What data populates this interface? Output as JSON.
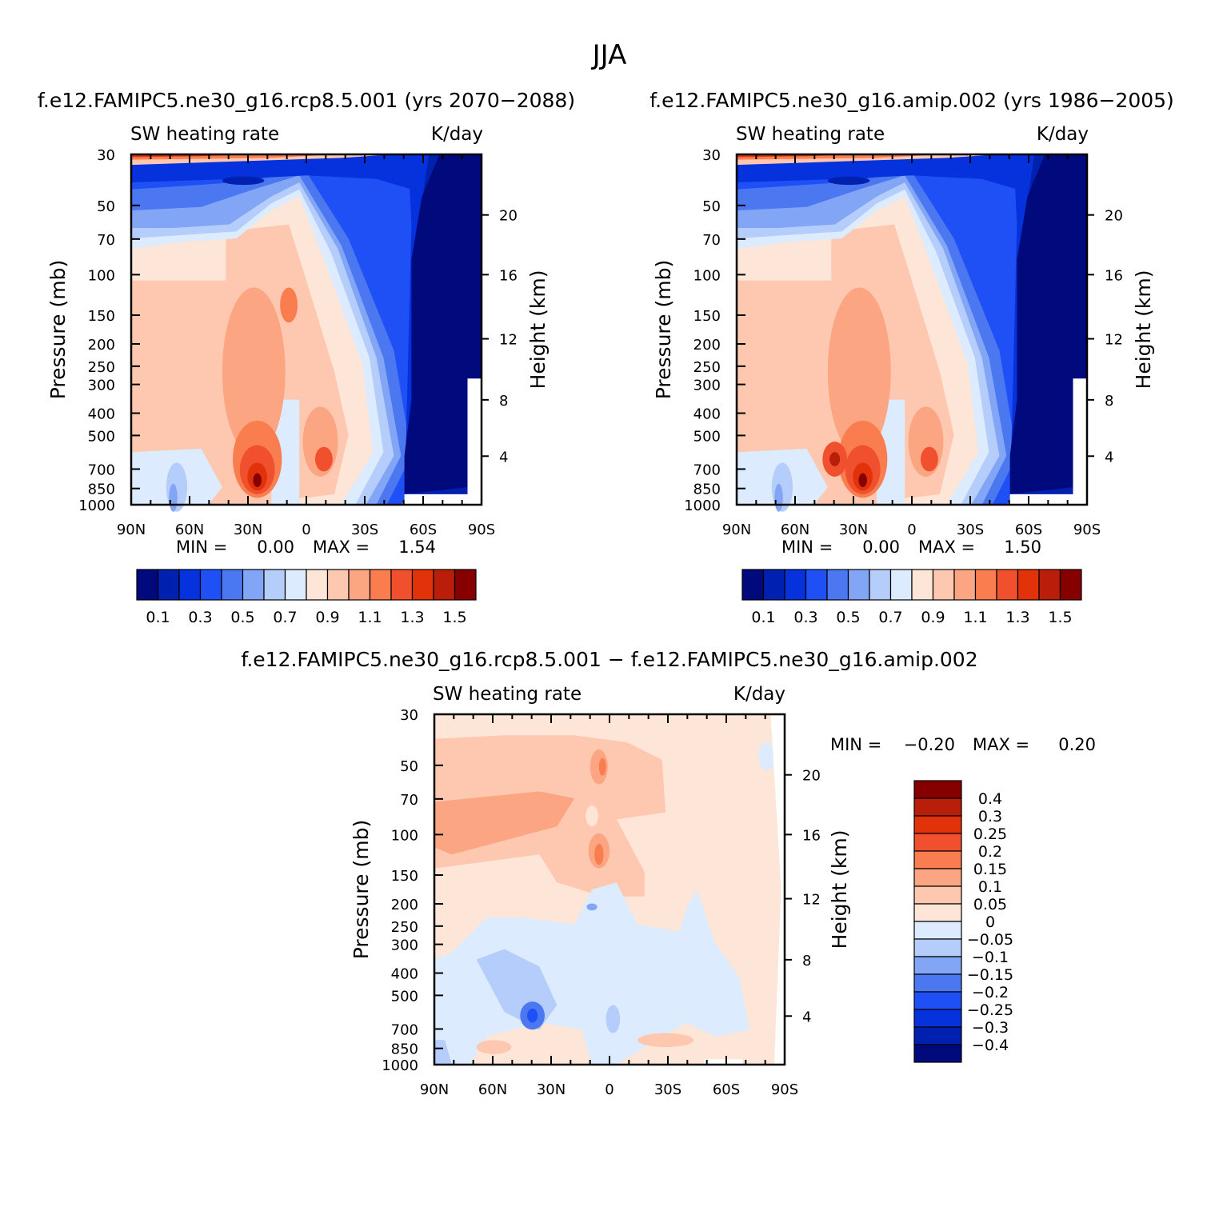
{
  "chart_data": {
    "type": "contour",
    "title": "JJA",
    "panels": [
      {
        "id": "rcp",
        "title": "f.e12.FAMIPC5.ne30_g16.rcp8.5.001 (yrs 2070-2088)",
        "variable": "SW heating rate",
        "units": "K/day",
        "ylabel": "Pressure (mb)",
        "y2label": "Height (km)",
        "x_ticks": [
          "90N",
          "60N",
          "30N",
          "0",
          "30S",
          "60S",
          "90S"
        ],
        "y_ticks": [
          "30",
          "50",
          "70",
          "100",
          "150",
          "200",
          "250",
          "300",
          "400",
          "500",
          "700",
          "850",
          "1000"
        ],
        "height_ticks": [
          "20",
          "16",
          "12",
          "8",
          "4"
        ],
        "min_label": "MIN =",
        "min_value": "0.00",
        "max_label": "MAX =",
        "max_value": "1.54",
        "colorbar_labels": [
          "0.1",
          "0.3",
          "0.5",
          "0.7",
          "0.9",
          "1.1",
          "1.3",
          "1.5"
        ],
        "colorbar_levels": [
          0.1,
          0.2,
          0.3,
          0.4,
          0.5,
          0.6,
          0.7,
          0.8,
          0.9,
          1.0,
          1.1,
          1.2,
          1.3,
          1.4,
          1.5
        ]
      },
      {
        "id": "amip",
        "title": "f.e12.FAMIPC5.ne30_g16.amip.002 (yrs 1986-2005)",
        "variable": "SW heating rate",
        "units": "K/day",
        "ylabel": "Pressure (mb)",
        "y2label": "Height (km)",
        "x_ticks": [
          "90N",
          "60N",
          "30N",
          "0",
          "30S",
          "60S",
          "90S"
        ],
        "y_ticks": [
          "30",
          "50",
          "70",
          "100",
          "150",
          "200",
          "250",
          "300",
          "400",
          "500",
          "700",
          "850",
          "1000"
        ],
        "height_ticks": [
          "20",
          "16",
          "12",
          "8",
          "4"
        ],
        "min_label": "MIN =",
        "min_value": "0.00",
        "max_label": "MAX =",
        "max_value": "1.50",
        "colorbar_labels": [
          "0.1",
          "0.3",
          "0.5",
          "0.7",
          "0.9",
          "1.1",
          "1.3",
          "1.5"
        ],
        "colorbar_levels": [
          0.1,
          0.2,
          0.3,
          0.4,
          0.5,
          0.6,
          0.7,
          0.8,
          0.9,
          1.0,
          1.1,
          1.2,
          1.3,
          1.4,
          1.5
        ]
      },
      {
        "id": "diff",
        "title": "f.e12.FAMIPC5.ne30_g16.rcp8.5.001 - f.e12.FAMIPC5.ne30_g16.amip.002",
        "variable": "SW heating rate",
        "units": "K/day",
        "ylabel": "Pressure (mb)",
        "y2label": "Height (km)",
        "x_ticks": [
          "90N",
          "60N",
          "30N",
          "0",
          "30S",
          "60S",
          "90S"
        ],
        "y_ticks": [
          "30",
          "50",
          "70",
          "100",
          "150",
          "200",
          "250",
          "300",
          "400",
          "500",
          "700",
          "850",
          "1000"
        ],
        "height_ticks": [
          "20",
          "16",
          "12",
          "8",
          "4"
        ],
        "min_label": "MIN =",
        "min_value": "-0.20",
        "max_label": "MAX =",
        "max_value": "0.20",
        "colorbar_labels": [
          "0.4",
          "0.3",
          "0.25",
          "0.2",
          "0.15",
          "0.1",
          "0.05",
          "0",
          "-0.05",
          "-0.1",
          "-0.15",
          "-0.2",
          "-0.25",
          "-0.3",
          "-0.4"
        ],
        "colorbar_levels": [
          0.4,
          0.3,
          0.25,
          0.2,
          0.15,
          0.1,
          0.05,
          0,
          -0.05,
          -0.1,
          -0.15,
          -0.2,
          -0.25,
          -0.3,
          -0.4
        ]
      }
    ]
  },
  "colors": {
    "seq": [
      "#000a7d",
      "#0020b0",
      "#0532dc",
      "#1e50f5",
      "#4b78f0",
      "#82a5f5",
      "#b4cdfa",
      "#dcebfd",
      "#fde6d7",
      "#fdc8af",
      "#fca582",
      "#fa7d50",
      "#f0502d",
      "#e1320a",
      "#b91e0a",
      "#870000"
    ]
  }
}
